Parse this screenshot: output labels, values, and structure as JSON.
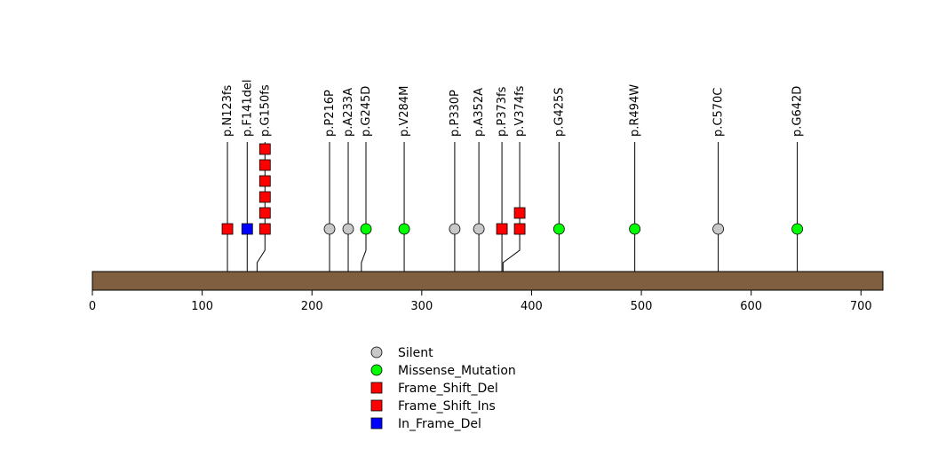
{
  "chart_data": {
    "type": "lollipop",
    "xlim": [
      0,
      720
    ],
    "x_ticks": [
      0,
      100,
      200,
      300,
      400,
      500,
      600,
      700
    ],
    "legend_position": "bottom-center",
    "legend": [
      {
        "label": "Silent",
        "shape": "circle",
        "color": "#c8c8c8"
      },
      {
        "label": "Missense_Mutation",
        "shape": "circle",
        "color": "#00ff00"
      },
      {
        "label": "Frame_Shift_Del",
        "shape": "square",
        "color": "#ff0000"
      },
      {
        "label": "Frame_Shift_Ins",
        "shape": "square",
        "color": "#ff0000"
      },
      {
        "label": "In_Frame_Del",
        "shape": "square",
        "color": "#0000ff"
      }
    ],
    "colors": {
      "protein_bar": "#7f5f3f",
      "Silent": "#c8c8c8",
      "Missense_Mutation": "#00ff00",
      "Frame_Shift_Del": "#ff0000",
      "Frame_Shift_Ins": "#ff0000",
      "In_Frame_Del": "#0000ff"
    },
    "mutations": [
      {
        "label": "p.N123fs",
        "position": 123,
        "type": "Frame_Shift_Del",
        "count": 1
      },
      {
        "label": "p.F141del",
        "position": 141,
        "type": "In_Frame_Del",
        "count": 1
      },
      {
        "label": "p.G150fs",
        "position": 150,
        "type": "Frame_Shift_Del",
        "count": 6
      },
      {
        "label": "p.P216P",
        "position": 216,
        "type": "Silent",
        "count": 1
      },
      {
        "label": "p.A233A",
        "position": 233,
        "type": "Silent",
        "count": 1
      },
      {
        "label": "p.G245D",
        "position": 245,
        "type": "Missense_Mutation",
        "count": 1
      },
      {
        "label": "p.V284M",
        "position": 284,
        "type": "Missense_Mutation",
        "count": 1
      },
      {
        "label": "p.P330P",
        "position": 330,
        "type": "Silent",
        "count": 1
      },
      {
        "label": "p.A352A",
        "position": 352,
        "type": "Silent",
        "count": 1
      },
      {
        "label": "p.P373fs",
        "position": 373,
        "type": "Frame_Shift_Del",
        "count": 1
      },
      {
        "label": "p.V374fs",
        "position": 374,
        "type": "Frame_Shift_Del",
        "count": 2
      },
      {
        "label": "p.G425S",
        "position": 425,
        "type": "Missense_Mutation",
        "count": 1
      },
      {
        "label": "p.R494W",
        "position": 494,
        "type": "Missense_Mutation",
        "count": 1
      },
      {
        "label": "p.C570C",
        "position": 570,
        "type": "Silent",
        "count": 1
      },
      {
        "label": "p.G642D",
        "position": 642,
        "type": "Missense_Mutation",
        "count": 1
      }
    ]
  }
}
